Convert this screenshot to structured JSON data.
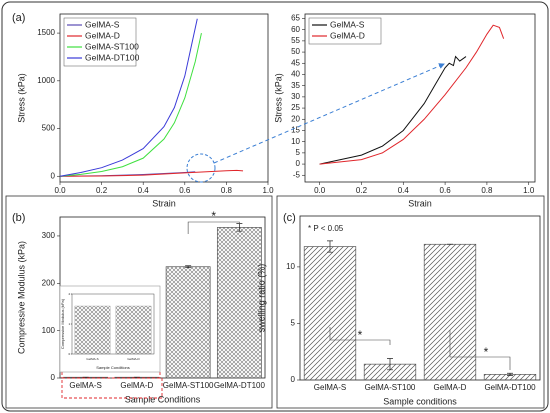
{
  "chart_data": [
    {
      "type": "line",
      "panel_label": "(a)",
      "xlabel": "Strain",
      "ylabel": "Stress (kPa)",
      "xlim": [
        0,
        1
      ],
      "xticks": [
        {
          "value": 0,
          "label": "0.0"
        },
        {
          "value": 0.2,
          "label": "0.2"
        },
        {
          "value": 0.4,
          "label": "0.4"
        },
        {
          "value": 0.6,
          "label": "0.6"
        },
        {
          "value": 0.8,
          "label": "0.8"
        },
        {
          "value": 1,
          "label": "1.0"
        }
      ],
      "ylim": [
        -60,
        1700
      ],
      "yticks": [
        0,
        500,
        1000,
        1500
      ],
      "legend": "upper left",
      "grid": false,
      "series": [
        {
          "name": "GelMA-S",
          "color": "#5b4bb5",
          "x": [
            0,
            0.2,
            0.4,
            0.6,
            0.65
          ],
          "values": [
            0,
            5,
            18,
            40,
            47
          ]
        },
        {
          "name": "GelMA-D",
          "color": "#e0262b",
          "x": [
            0,
            0.2,
            0.4,
            0.6,
            0.8,
            0.85,
            0.88
          ],
          "values": [
            0,
            3,
            12,
            35,
            58,
            62,
            57
          ]
        },
        {
          "name": "GelMA-ST100",
          "color": "#3fe03f",
          "x": [
            0,
            0.1,
            0.2,
            0.3,
            0.4,
            0.5,
            0.55,
            0.6,
            0.65,
            0.68
          ],
          "values": [
            0,
            20,
            50,
            100,
            190,
            390,
            560,
            820,
            1200,
            1500
          ]
        },
        {
          "name": "GelMA-DT100",
          "color": "#3a3ad8",
          "x": [
            0,
            0.1,
            0.2,
            0.3,
            0.4,
            0.5,
            0.55,
            0.6,
            0.63,
            0.66
          ],
          "values": [
            0,
            40,
            90,
            170,
            290,
            520,
            720,
            1050,
            1350,
            1650
          ]
        }
      ]
    },
    {
      "type": "line",
      "xlabel": "Strain",
      "ylabel": "Stress (kPa)",
      "xlim": [
        -0.07,
        1.03
      ],
      "xticks": [
        {
          "value": 0,
          "label": "0.0"
        },
        {
          "value": 0.2,
          "label": "0.2"
        },
        {
          "value": 0.4,
          "label": "0.4"
        },
        {
          "value": 0.6,
          "label": "0.6"
        },
        {
          "value": 0.8,
          "label": "0.8"
        },
        {
          "value": 1,
          "label": "1.0"
        }
      ],
      "ylim": [
        -8,
        67
      ],
      "yticks": [
        -5,
        0,
        5,
        10,
        15,
        20,
        25,
        30,
        35,
        40,
        45,
        50,
        55,
        60,
        65
      ],
      "legend": "upper left",
      "grid": false,
      "series": [
        {
          "name": "GelMA-S",
          "color": "#111111",
          "x": [
            0,
            0.1,
            0.2,
            0.3,
            0.4,
            0.5,
            0.55,
            0.6,
            0.62,
            0.64,
            0.65,
            0.67,
            0.7
          ],
          "values": [
            0,
            2,
            4,
            8,
            15,
            27,
            35,
            43,
            45,
            44,
            48,
            46,
            48
          ]
        },
        {
          "name": "GelMA-D",
          "color": "#e0262b",
          "x": [
            0,
            0.1,
            0.2,
            0.3,
            0.4,
            0.5,
            0.6,
            0.7,
            0.75,
            0.8,
            0.83,
            0.86,
            0.88
          ],
          "values": [
            0,
            1,
            2,
            5,
            11,
            20,
            31,
            43,
            50,
            58,
            62,
            61,
            56
          ]
        }
      ]
    },
    {
      "type": "bar",
      "panel_label": "(b)",
      "xlabel": "Sample Conditions",
      "ylabel": "Compressive Modulus (kPa)",
      "categories": [
        "GelMA-S",
        "GelMA-D",
        "GelMA-ST100",
        "GelMA-DT100"
      ],
      "values": [
        1.6,
        1.6,
        235,
        318
      ],
      "errors": [
        0.1,
        0.1,
        2,
        8
      ],
      "ylim": [
        0,
        340
      ],
      "yticks": [
        0,
        100,
        200,
        300
      ],
      "color": "#555555",
      "hatch": "cross",
      "annotations": [
        "*"
      ]
    },
    {
      "type": "bar",
      "xlabel": "Sample Conditions",
      "ylabel": "Compressive Modulus (kPa)",
      "categories": [
        "GelMA-S",
        "GelMA-D"
      ],
      "values": [
        1.6,
        1.6
      ],
      "ylim": [
        0,
        2
      ],
      "yticks": [
        0,
        1,
        2
      ],
      "color": "#888888",
      "hatch": "cross"
    },
    {
      "type": "bar",
      "panel_label": "(c)",
      "xlabel": "Sample conditions",
      "ylabel": "swelling ratio (%)",
      "categories": [
        "GelMA-S",
        "GelMA-ST100",
        "GelMA-D",
        "GelMA-DT100"
      ],
      "values": [
        11.8,
        1.4,
        12.0,
        0.5
      ],
      "errors": [
        0.5,
        0.5,
        0,
        0.1
      ],
      "ylim": [
        0,
        14.5
      ],
      "yticks": [
        0,
        5,
        10
      ],
      "color": "#555555",
      "hatch": "diagonal",
      "annotations": [
        "* P < 0.05",
        "*",
        "*"
      ]
    }
  ]
}
